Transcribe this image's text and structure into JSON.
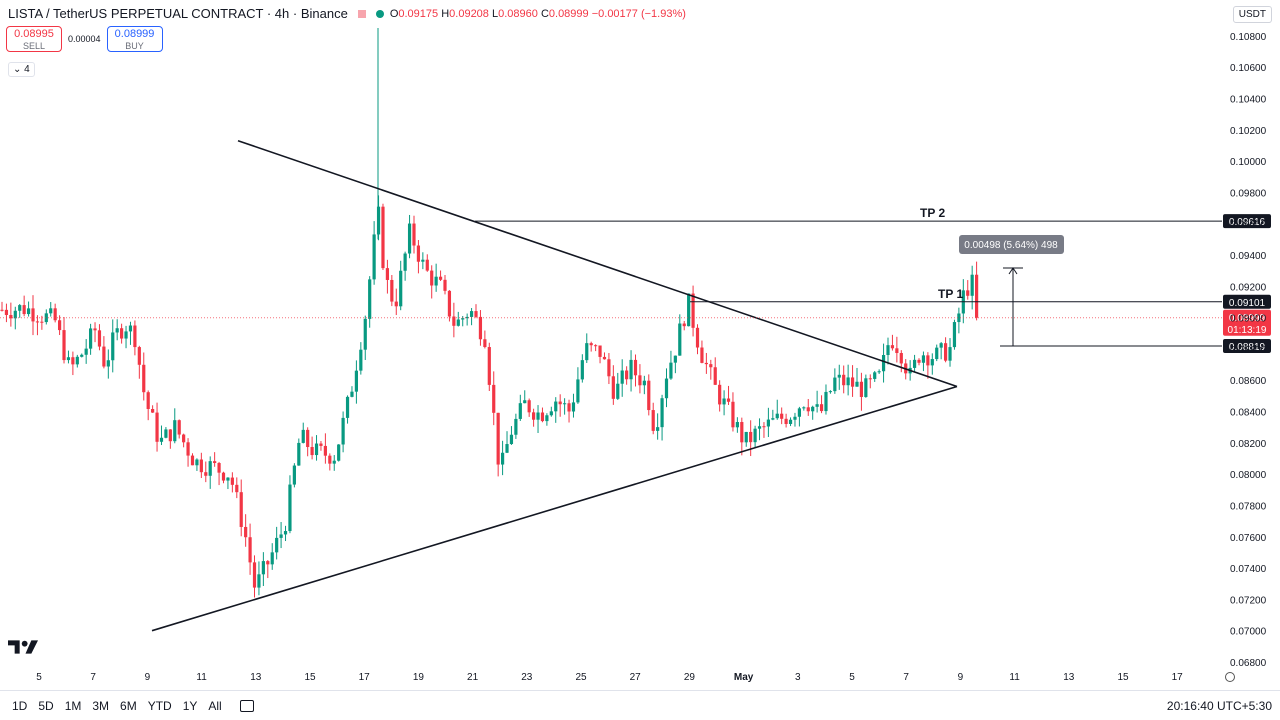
{
  "header": {
    "symbol": "LISTA / TetherUS PERPETUAL CONTRACT · 4h · Binance",
    "o_label": "O",
    "o": "0.09175",
    "h_label": "H",
    "h": "0.09208",
    "l_label": "L",
    "l": "0.08960",
    "c_label": "C",
    "c": "0.08999",
    "change": "−0.00177 (−1.93%)"
  },
  "trade": {
    "sell_price": "0.08995",
    "sell_label": "SELL",
    "spread": "0.00004",
    "buy_price": "0.08999",
    "buy_label": "BUY"
  },
  "indicators_count": "4",
  "currency": "USDT",
  "bottom_bar": {
    "timeframes": [
      "1D",
      "5D",
      "1M",
      "3M",
      "6M",
      "YTD",
      "1Y",
      "All"
    ],
    "clock": "20:16:40 UTC+5:30"
  },
  "chart_data": {
    "type": "candlestick",
    "interval": "4h",
    "y_range": [
      0.068,
      0.1085
    ],
    "y_ticks": [
      "0.10800",
      "0.10600",
      "0.10400",
      "0.10200",
      "0.10000",
      "0.09800",
      "0.09600",
      "0.09400",
      "0.09200",
      "0.09000",
      "0.08800",
      "0.08600",
      "0.08400",
      "0.08200",
      "0.08000",
      "0.07800",
      "0.07600",
      "0.07400",
      "0.07200",
      "0.07000",
      "0.06800"
    ],
    "x_labels": [
      "5",
      "7",
      "9",
      "11",
      "13",
      "15",
      "17",
      "19",
      "21",
      "23",
      "25",
      "27",
      "29",
      "May",
      "3",
      "5",
      "7",
      "9",
      "11",
      "13",
      "15",
      "17"
    ],
    "colors": {
      "up": "#089981",
      "down": "#f23645",
      "lines": "#131722"
    },
    "price_waypoints": [
      [
        0,
        0.0905
      ],
      [
        25,
        0.0906
      ],
      [
        55,
        0.0898
      ],
      [
        70,
        0.0866
      ],
      [
        85,
        0.088
      ],
      [
        95,
        0.0892
      ],
      [
        105,
        0.087
      ],
      [
        115,
        0.0888
      ],
      [
        125,
        0.0896
      ],
      [
        135,
        0.0888
      ],
      [
        145,
        0.0848
      ],
      [
        160,
        0.082
      ],
      [
        175,
        0.083
      ],
      [
        195,
        0.0808
      ],
      [
        215,
        0.0804
      ],
      [
        230,
        0.08
      ],
      [
        245,
        0.0762
      ],
      [
        255,
        0.0727
      ],
      [
        270,
        0.0746
      ],
      [
        285,
        0.0768
      ],
      [
        300,
        0.0824
      ],
      [
        315,
        0.0814
      ],
      [
        335,
        0.0812
      ],
      [
        350,
        0.085
      ],
      [
        365,
        0.09
      ],
      [
        378,
        0.0968
      ],
      [
        385,
        0.0925
      ],
      [
        395,
        0.0908
      ],
      [
        410,
        0.0955
      ],
      [
        425,
        0.093
      ],
      [
        440,
        0.092
      ],
      [
        455,
        0.0895
      ],
      [
        470,
        0.0905
      ],
      [
        485,
        0.0888
      ],
      [
        500,
        0.08
      ],
      [
        510,
        0.0826
      ],
      [
        525,
        0.0845
      ],
      [
        540,
        0.0838
      ],
      [
        555,
        0.0848
      ],
      [
        570,
        0.084
      ],
      [
        585,
        0.088
      ],
      [
        600,
        0.0878
      ],
      [
        615,
        0.0852
      ],
      [
        630,
        0.0868
      ],
      [
        645,
        0.0858
      ],
      [
        655,
        0.0828
      ],
      [
        665,
        0.0862
      ],
      [
        675,
        0.088
      ],
      [
        688,
        0.091
      ],
      [
        700,
        0.088
      ],
      [
        715,
        0.0855
      ],
      [
        730,
        0.0838
      ],
      [
        745,
        0.082
      ],
      [
        760,
        0.0828
      ],
      [
        775,
        0.0834
      ],
      [
        790,
        0.0838
      ],
      [
        805,
        0.0848
      ],
      [
        820,
        0.0838
      ],
      [
        835,
        0.086
      ],
      [
        850,
        0.0858
      ],
      [
        865,
        0.0854
      ],
      [
        880,
        0.0862
      ],
      [
        890,
        0.0888
      ],
      [
        900,
        0.088
      ],
      [
        910,
        0.0862
      ],
      [
        920,
        0.0878
      ],
      [
        935,
        0.0875
      ],
      [
        950,
        0.088
      ],
      [
        965,
        0.0918
      ],
      [
        972,
        0.0922
      ],
      [
        978,
        0.08999
      ]
    ],
    "trendlines": [
      {
        "name": "upper-trendline",
        "from": [
          238,
          0.1013
        ],
        "to": [
          957,
          0.0856
        ]
      },
      {
        "name": "lower-trendline",
        "from": [
          152,
          0.07
        ],
        "to": [
          957,
          0.0856
        ]
      }
    ],
    "levels": [
      {
        "name": "tp-2",
        "label": "TP 2",
        "price": 0.09616,
        "price_text": "0.09616",
        "x_start": 475
      },
      {
        "name": "tp-1",
        "label": "TP 1",
        "price": 0.09101,
        "price_text": "0.09101",
        "x_start": 690
      },
      {
        "name": "entry",
        "label": "",
        "price": 0.08819,
        "price_text": "0.08819",
        "x_start": 1000
      }
    ],
    "current_price": {
      "price": 0.08999,
      "price_text": "0.08999",
      "countdown": "01:13:19"
    },
    "measure": {
      "from": 0.08819,
      "to": 0.09317,
      "x": 1013,
      "label": "0.00498 (5.64%) 498"
    }
  }
}
